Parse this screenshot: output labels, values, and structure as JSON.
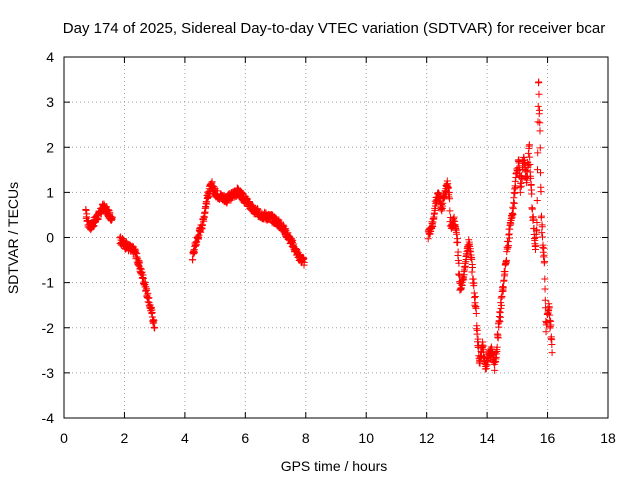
{
  "chart_data": {
    "type": "scatter",
    "title": "Day 174 of 2025, Sidereal Day-to-day VTEC variation (SDTVAR) for receiver bcar",
    "xlabel": "GPS time / hours",
    "ylabel": "SDTVAR / TECUs",
    "xlim": [
      0,
      18
    ],
    "ylim": [
      -4,
      4
    ],
    "xticks": [
      0,
      2,
      4,
      6,
      8,
      10,
      12,
      14,
      16,
      18
    ],
    "yticks": [
      -4,
      -3,
      -2,
      -1,
      0,
      1,
      2,
      3,
      4
    ],
    "grid": true,
    "marker": "plus",
    "series": [
      {
        "name": "SDTVAR",
        "color": "#ff0000",
        "anchors": [
          [
            [
              0.72,
              0.55
            ],
            [
              0.8,
              0.3
            ],
            [
              0.9,
              0.25
            ],
            [
              1.0,
              0.35
            ],
            [
              1.1,
              0.45
            ],
            [
              1.2,
              0.55
            ],
            [
              1.3,
              0.68
            ],
            [
              1.4,
              0.6
            ],
            [
              1.5,
              0.5
            ],
            [
              1.6,
              0.45
            ]
          ],
          [
            [
              1.85,
              -0.05
            ],
            [
              2.0,
              -0.15
            ],
            [
              2.1,
              -0.2
            ],
            [
              2.2,
              -0.25
            ],
            [
              2.35,
              -0.3
            ],
            [
              2.5,
              -0.65
            ],
            [
              2.6,
              -0.85
            ],
            [
              2.7,
              -1.1
            ],
            [
              2.8,
              -1.4
            ],
            [
              2.9,
              -1.65
            ],
            [
              3.0,
              -2.0
            ]
          ],
          [
            [
              4.25,
              -0.45
            ],
            [
              4.35,
              -0.15
            ],
            [
              4.5,
              0.15
            ],
            [
              4.6,
              0.35
            ],
            [
              4.7,
              0.75
            ],
            [
              4.8,
              1.05
            ],
            [
              4.9,
              1.15
            ],
            [
              5.0,
              1.0
            ],
            [
              5.2,
              0.9
            ],
            [
              5.4,
              0.85
            ],
            [
              5.6,
              0.95
            ],
            [
              5.75,
              1.02
            ],
            [
              5.9,
              0.9
            ],
            [
              6.1,
              0.75
            ],
            [
              6.3,
              0.58
            ],
            [
              6.5,
              0.52
            ],
            [
              6.8,
              0.45
            ],
            [
              7.0,
              0.38
            ],
            [
              7.2,
              0.25
            ],
            [
              7.4,
              0.05
            ],
            [
              7.6,
              -0.2
            ],
            [
              7.8,
              -0.45
            ],
            [
              7.95,
              -0.55
            ]
          ],
          [
            [
              12.05,
              0.05
            ],
            [
              12.2,
              0.3
            ],
            [
              12.3,
              0.8
            ],
            [
              12.4,
              0.95
            ],
            [
              12.5,
              0.65
            ],
            [
              12.6,
              1.0
            ],
            [
              12.7,
              1.2
            ],
            [
              12.75,
              0.85
            ],
            [
              12.8,
              0.2
            ],
            [
              12.9,
              0.4
            ],
            [
              13.0,
              0.0
            ],
            [
              13.1,
              -1.1
            ],
            [
              13.2,
              -1.0
            ],
            [
              13.3,
              -0.5
            ],
            [
              13.4,
              -0.1
            ],
            [
              13.5,
              -0.6
            ],
            [
              13.6,
              -1.4
            ],
            [
              13.7,
              -2.3
            ],
            [
              13.75,
              -2.8
            ],
            [
              13.85,
              -2.4
            ],
            [
              13.95,
              -2.9
            ],
            [
              14.05,
              -2.6
            ],
            [
              14.15,
              -2.5
            ],
            [
              14.25,
              -2.8
            ],
            [
              14.35,
              -2.2
            ],
            [
              14.45,
              -1.6
            ],
            [
              14.55,
              -0.9
            ],
            [
              14.65,
              -0.4
            ],
            [
              14.75,
              0.2
            ],
            [
              14.85,
              0.55
            ],
            [
              14.95,
              1.3
            ],
            [
              15.05,
              1.7
            ],
            [
              15.1,
              1.0
            ],
            [
              15.2,
              1.8
            ],
            [
              15.3,
              1.3
            ],
            [
              15.4,
              1.9
            ],
            [
              15.5,
              0.6
            ],
            [
              15.55,
              0.2
            ],
            [
              15.6,
              -0.2
            ],
            [
              15.65,
              0.2
            ],
            [
              15.7,
              3.6
            ],
            [
              15.75,
              2.2
            ],
            [
              15.8,
              0.3
            ],
            [
              15.9,
              -0.6
            ],
            [
              15.95,
              -2.0
            ],
            [
              16.05,
              -1.5
            ],
            [
              16.15,
              -2.55
            ]
          ]
        ],
        "noise": 0.18,
        "density_per_hour": 120
      }
    ]
  }
}
